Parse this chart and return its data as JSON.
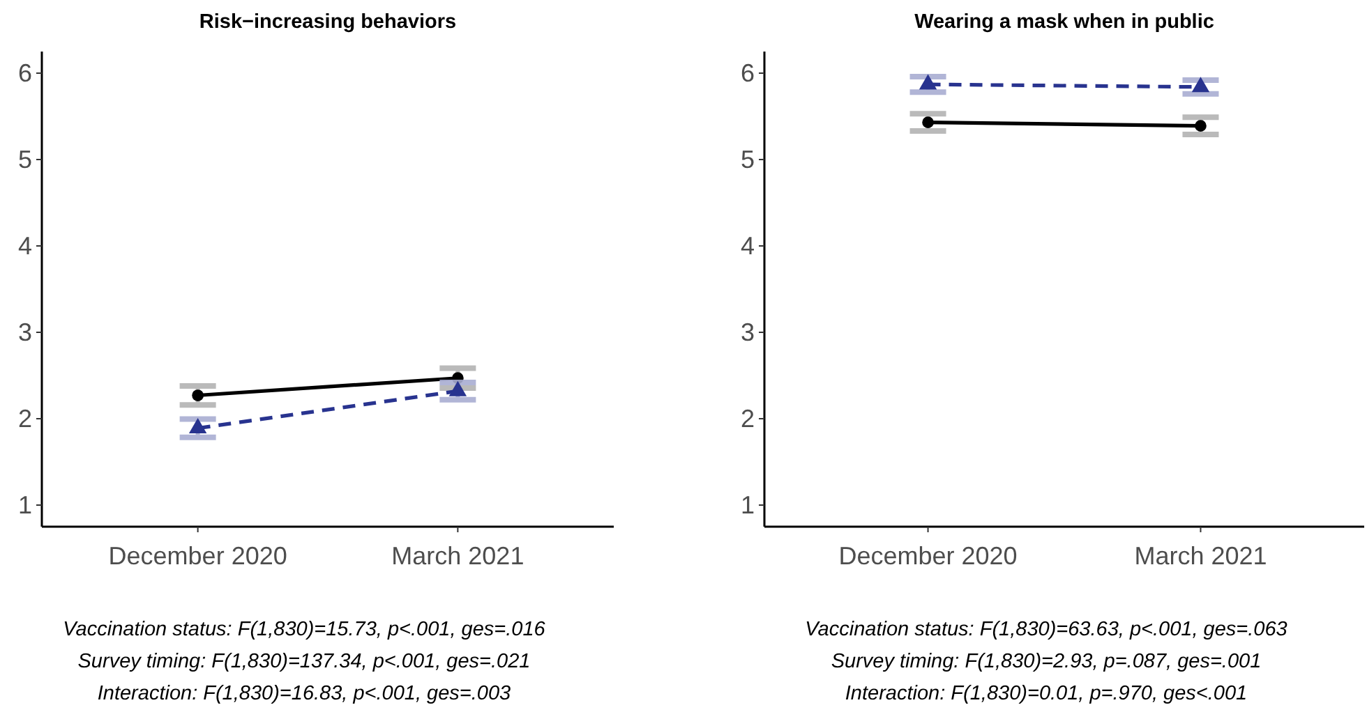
{
  "chart_data": [
    {
      "type": "line",
      "title": "Risk−increasing behaviors",
      "categories": [
        "December 2020",
        "March 2021"
      ],
      "ylim": [
        0.75,
        6.25
      ],
      "yticks": [
        1,
        2,
        3,
        4,
        5,
        6
      ],
      "grid": false,
      "series": [
        {
          "color": "#000000",
          "marker": "circle",
          "line_style": "solid",
          "values": [
            2.27,
            2.47
          ],
          "errors": [
            0.11,
            0.115
          ]
        },
        {
          "color": "#28338f",
          "marker": "triangle",
          "line_style": "dashed",
          "values": [
            1.89,
            2.32
          ],
          "errors": [
            0.105,
            0.1
          ]
        }
      ],
      "annotations": [
        "Vaccination status: F(1,830)=15.73, p<.001, ges=.016",
        "Survey timing: F(1,830)=137.34, p<.001, ges=.021",
        "Interaction: F(1,830)=16.83, p<.001, ges=.003"
      ]
    },
    {
      "type": "line",
      "title": "Wearing a mask when in public",
      "categories": [
        "December 2020",
        "March 2021"
      ],
      "ylim": [
        0.75,
        6.25
      ],
      "yticks": [
        1,
        2,
        3,
        4,
        5,
        6
      ],
      "grid": false,
      "series": [
        {
          "color": "#000000",
          "marker": "circle",
          "line_style": "solid",
          "values": [
            5.43,
            5.39
          ],
          "errors": [
            0.1,
            0.1
          ]
        },
        {
          "color": "#28338f",
          "marker": "triangle",
          "line_style": "dashed",
          "values": [
            5.87,
            5.84
          ],
          "errors": [
            0.09,
            0.08
          ]
        }
      ],
      "annotations": [
        "Vaccination status: F(1,830)=63.63, p<.001, ges=.063",
        "Survey timing: F(1,830)=2.93, p=.087, ges=.001",
        "Interaction: F(1,830)=0.01, p=.970, ges<.001"
      ]
    }
  ]
}
